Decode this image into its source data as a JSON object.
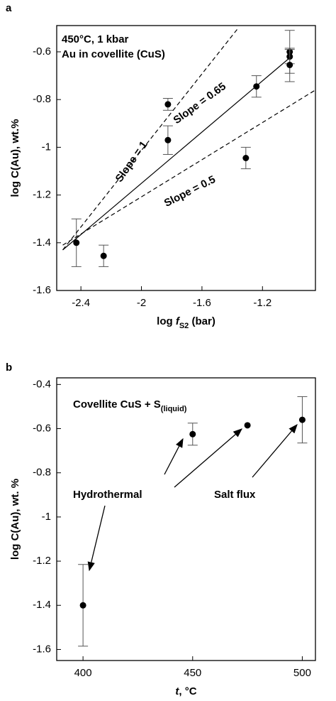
{
  "chart_data": [
    {
      "type": "scatter",
      "panel_label": "a",
      "annotations": [
        "450°C, 1 kbar",
        "Au in covellite (CuS)",
        "Slope = 1",
        "Slope = 0.65",
        "Slope = 0.5"
      ],
      "x_label": [
        "log ",
        "f",
        "S2",
        " (bar)"
      ],
      "y_label": "log C(Au), wt.%",
      "xlim": [
        -2.56,
        -0.85
      ],
      "ylim": [
        -1.6,
        -0.49
      ],
      "xticks": [
        -2.4,
        -2,
        -1.6,
        -1.2
      ],
      "yticks": [
        -1.6,
        -1.4,
        -1.2,
        -1,
        -0.8,
        -0.6
      ],
      "series": [
        {
          "type": "scatter",
          "color": "#000000",
          "x": [
            -2.43,
            -2.25,
            -1.825,
            -1.825,
            -1.31,
            -1.24,
            -1.02,
            -1.02,
            -1.02
          ],
          "values": [
            -1.4,
            -1.455,
            -0.82,
            -0.97,
            -1.045,
            -0.745,
            -0.6,
            -0.62,
            -0.655
          ],
          "errors": [
            0.1,
            0.045,
            0.025,
            0.06,
            0.045,
            0.045,
            0.09,
            0.03,
            0.07
          ]
        },
        {
          "type": "line",
          "color": "#000000",
          "dash": false,
          "x": [
            -2.52,
            -1.02
          ],
          "values": [
            -1.43,
            -0.625
          ]
        },
        {
          "type": "line",
          "color": "#000000",
          "dash": true,
          "x": [
            -2.52,
            -1.36
          ],
          "values": [
            -1.43,
            -0.5
          ]
        },
        {
          "type": "line",
          "color": "#000000",
          "dash": true,
          "x": [
            -2.52,
            -0.85
          ],
          "values": [
            -1.41,
            -0.76
          ]
        }
      ]
    },
    {
      "type": "scatter",
      "panel_label": "b",
      "annotations": [
        "Covellite CuS + S",
        "(liquid)",
        "Hydrothermal",
        "Salt flux"
      ],
      "x_label": [
        "t",
        ", °C"
      ],
      "y_label": "log C(Au), wt. %",
      "xlim": [
        388,
        506
      ],
      "ylim": [
        -1.65,
        -0.37
      ],
      "xticks": [
        400,
        450,
        500
      ],
      "yticks": [
        -1.6,
        -1.4,
        -1.2,
        -1,
        -0.8,
        -0.6,
        -0.4
      ],
      "series": [
        {
          "type": "scatter",
          "color": "#000000",
          "x": [
            400,
            450,
            475,
            500
          ],
          "values": [
            -1.4,
            -0.625,
            -0.585,
            -0.56
          ],
          "errors": [
            0.185,
            0.05,
            null,
            0.105
          ]
        }
      ]
    }
  ]
}
